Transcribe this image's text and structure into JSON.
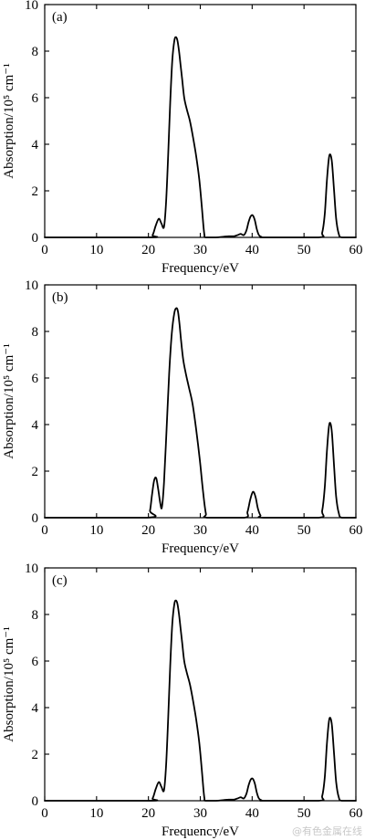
{
  "chart_data": [
    {
      "type": "line",
      "panel_label": "(a)",
      "xlabel": "Frequency/eV",
      "ylabel": "Absorption/10⁵ cm⁻¹",
      "xlim": [
        0,
        60
      ],
      "ylim": [
        0,
        10
      ],
      "xticks": [
        0,
        10,
        20,
        30,
        40,
        50,
        60
      ],
      "yticks": [
        0,
        2,
        4,
        6,
        8,
        10
      ],
      "grid": false,
      "series": [
        {
          "x": [
            0,
            20.0,
            20.8,
            21.4,
            22.0,
            22.5,
            23.0,
            23.4,
            23.8,
            24.2,
            24.6,
            25.0,
            25.3,
            25.6,
            25.9,
            26.2,
            26.5,
            26.9,
            27.4,
            28.0,
            28.6,
            29.2,
            29.8,
            30.3,
            30.6,
            30.8,
            31.0,
            33.0,
            34.5,
            35.5,
            36.5,
            37.2,
            37.8,
            38.4,
            38.9,
            39.3,
            39.7,
            40.1,
            40.5,
            40.9,
            41.3,
            41.8,
            42.5,
            52.8,
            53.5,
            54.0,
            54.4,
            54.8,
            55.1,
            55.4,
            55.8,
            56.2,
            56.7,
            57.3,
            60
          ],
          "y": [
            0,
            0,
            0.1,
            0.5,
            0.8,
            0.6,
            0.45,
            1.5,
            3.5,
            5.8,
            7.6,
            8.45,
            8.6,
            8.45,
            8.0,
            7.4,
            6.8,
            6.0,
            5.5,
            5.0,
            4.3,
            3.5,
            2.5,
            1.3,
            0.5,
            0.1,
            0,
            0,
            0.03,
            0.05,
            0.05,
            0.1,
            0.15,
            0.1,
            0.3,
            0.65,
            0.9,
            0.95,
            0.75,
            0.35,
            0.1,
            0.02,
            0,
            0,
            0.2,
            1.0,
            2.4,
            3.4,
            3.55,
            3.2,
            2.0,
            0.8,
            0.15,
            0,
            0
          ]
        }
      ]
    },
    {
      "type": "line",
      "panel_label": "(b)",
      "xlabel": "Frequency/eV",
      "ylabel": "Absorption/10⁵ cm⁻¹",
      "xlim": [
        0,
        60
      ],
      "ylim": [
        0,
        10
      ],
      "xticks": [
        0,
        10,
        20,
        30,
        40,
        50,
        60
      ],
      "yticks": [
        0,
        2,
        4,
        6,
        8,
        10
      ],
      "grid": false,
      "series": [
        {
          "x": [
            0,
            19.8,
            20.3,
            20.7,
            21.1,
            21.5,
            21.9,
            22.3,
            22.6,
            23.0,
            23.5,
            24.0,
            24.5,
            25.0,
            25.4,
            25.7,
            26.0,
            26.3,
            26.7,
            27.2,
            27.8,
            28.5,
            29.2,
            29.9,
            30.4,
            30.8,
            31.1,
            31.3,
            38.5,
            39.1,
            39.6,
            40.0,
            40.3,
            40.7,
            41.1,
            41.6,
            42.2,
            52.8,
            53.5,
            54.0,
            54.4,
            54.8,
            55.1,
            55.4,
            55.8,
            56.2,
            56.7,
            57.3,
            60
          ],
          "y": [
            0,
            0,
            0.3,
            1.0,
            1.6,
            1.7,
            1.2,
            0.6,
            0.45,
            1.5,
            3.8,
            6.2,
            7.9,
            8.8,
            9.0,
            8.85,
            8.3,
            7.6,
            6.8,
            6.2,
            5.6,
            4.9,
            3.8,
            2.5,
            1.4,
            0.6,
            0.15,
            0,
            0,
            0.25,
            0.75,
            1.05,
            1.1,
            0.85,
            0.4,
            0.1,
            0,
            0,
            0.3,
            1.3,
            2.8,
            3.9,
            4.05,
            3.6,
            2.2,
            0.9,
            0.2,
            0,
            0
          ]
        }
      ]
    },
    {
      "type": "line",
      "panel_label": "(c)",
      "xlabel": "Frequency/eV",
      "ylabel": "Absorption/10⁵ cm⁻¹",
      "xlim": [
        0,
        60
      ],
      "ylim": [
        0,
        10
      ],
      "xticks": [
        0,
        10,
        20,
        30,
        40,
        50,
        60
      ],
      "yticks": [
        0,
        2,
        4,
        6,
        8,
        10
      ],
      "grid": false,
      "series": [
        {
          "x": [
            0,
            20.0,
            20.8,
            21.4,
            22.0,
            22.5,
            23.0,
            23.4,
            23.8,
            24.2,
            24.6,
            25.0,
            25.3,
            25.6,
            25.9,
            26.2,
            26.5,
            26.9,
            27.4,
            28.0,
            28.6,
            29.2,
            29.8,
            30.3,
            30.6,
            30.8,
            31.0,
            33.0,
            34.5,
            35.5,
            36.5,
            37.2,
            37.8,
            38.4,
            38.9,
            39.3,
            39.7,
            40.1,
            40.5,
            40.9,
            41.3,
            41.8,
            42.5,
            52.8,
            53.5,
            54.0,
            54.4,
            54.8,
            55.1,
            55.4,
            55.8,
            56.2,
            56.7,
            57.3,
            60
          ],
          "y": [
            0,
            0,
            0.1,
            0.5,
            0.8,
            0.6,
            0.45,
            1.5,
            3.5,
            5.8,
            7.6,
            8.45,
            8.6,
            8.45,
            8.0,
            7.4,
            6.8,
            6.0,
            5.5,
            5.0,
            4.3,
            3.5,
            2.5,
            1.3,
            0.5,
            0.1,
            0,
            0,
            0.03,
            0.05,
            0.05,
            0.1,
            0.15,
            0.1,
            0.3,
            0.65,
            0.9,
            0.95,
            0.75,
            0.35,
            0.1,
            0.02,
            0,
            0,
            0.2,
            1.0,
            2.4,
            3.4,
            3.55,
            3.2,
            2.0,
            0.8,
            0.15,
            0,
            0
          ]
        }
      ]
    }
  ],
  "watermark": "@有色金属在线"
}
